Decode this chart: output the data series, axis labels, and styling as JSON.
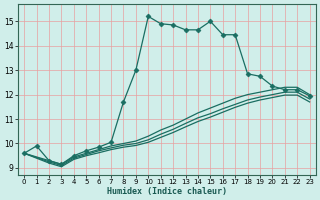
{
  "xlabel": "Humidex (Indice chaleur)",
  "bg_color": "#d0eeea",
  "line_color": "#1a6e62",
  "grid_color": "#e8a0a0",
  "xlim": [
    -0.5,
    23.5
  ],
  "ylim": [
    8.7,
    15.7
  ],
  "yticks": [
    9,
    10,
    11,
    12,
    13,
    14,
    15
  ],
  "xticks": [
    0,
    1,
    2,
    3,
    4,
    5,
    6,
    7,
    8,
    9,
    10,
    11,
    12,
    13,
    14,
    15,
    16,
    17,
    18,
    19,
    20,
    21,
    22,
    23
  ],
  "series": [
    {
      "x": [
        0,
        1,
        2,
        3,
        4,
        5,
        6,
        7,
        8,
        9,
        10,
        11,
        12,
        13,
        14,
        15,
        16,
        17,
        18,
        19,
        20,
        21,
        22,
        23
      ],
      "y": [
        9.6,
        9.9,
        9.3,
        9.15,
        9.5,
        9.7,
        9.85,
        10.05,
        11.7,
        13.0,
        15.2,
        14.9,
        14.85,
        14.65,
        14.65,
        15.0,
        14.45,
        14.45,
        12.85,
        12.75,
        12.35,
        12.2,
        12.2,
        11.95
      ],
      "marker": "D",
      "markersize": 2.5,
      "lw": 0.9
    },
    {
      "x": [
        0,
        2,
        3,
        4,
        5,
        6,
        7,
        8,
        9,
        10,
        11,
        12,
        13,
        14,
        15,
        16,
        17,
        18,
        19,
        20,
        21,
        22,
        23
      ],
      "y": [
        9.6,
        9.3,
        9.15,
        9.45,
        9.6,
        9.75,
        9.9,
        10.0,
        10.1,
        10.3,
        10.55,
        10.75,
        11.0,
        11.25,
        11.45,
        11.65,
        11.85,
        12.0,
        12.1,
        12.2,
        12.3,
        12.3,
        12.0
      ],
      "marker": null,
      "lw": 0.9
    },
    {
      "x": [
        0,
        2,
        3,
        4,
        5,
        6,
        7,
        8,
        9,
        10,
        11,
        12,
        13,
        14,
        15,
        16,
        17,
        18,
        19,
        20,
        21,
        22,
        23
      ],
      "y": [
        9.6,
        9.25,
        9.1,
        9.4,
        9.55,
        9.7,
        9.82,
        9.93,
        10.0,
        10.15,
        10.38,
        10.58,
        10.82,
        11.05,
        11.22,
        11.42,
        11.6,
        11.78,
        11.9,
        12.0,
        12.1,
        12.1,
        11.82
      ],
      "marker": null,
      "lw": 0.9
    },
    {
      "x": [
        0,
        2,
        3,
        4,
        5,
        6,
        7,
        8,
        9,
        10,
        11,
        12,
        13,
        14,
        15,
        16,
        17,
        18,
        19,
        20,
        21,
        22,
        23
      ],
      "y": [
        9.6,
        9.2,
        9.05,
        9.35,
        9.5,
        9.62,
        9.75,
        9.85,
        9.92,
        10.05,
        10.25,
        10.45,
        10.68,
        10.9,
        11.08,
        11.28,
        11.48,
        11.65,
        11.78,
        11.88,
        11.98,
        11.98,
        11.7
      ],
      "marker": null,
      "lw": 0.9
    }
  ]
}
